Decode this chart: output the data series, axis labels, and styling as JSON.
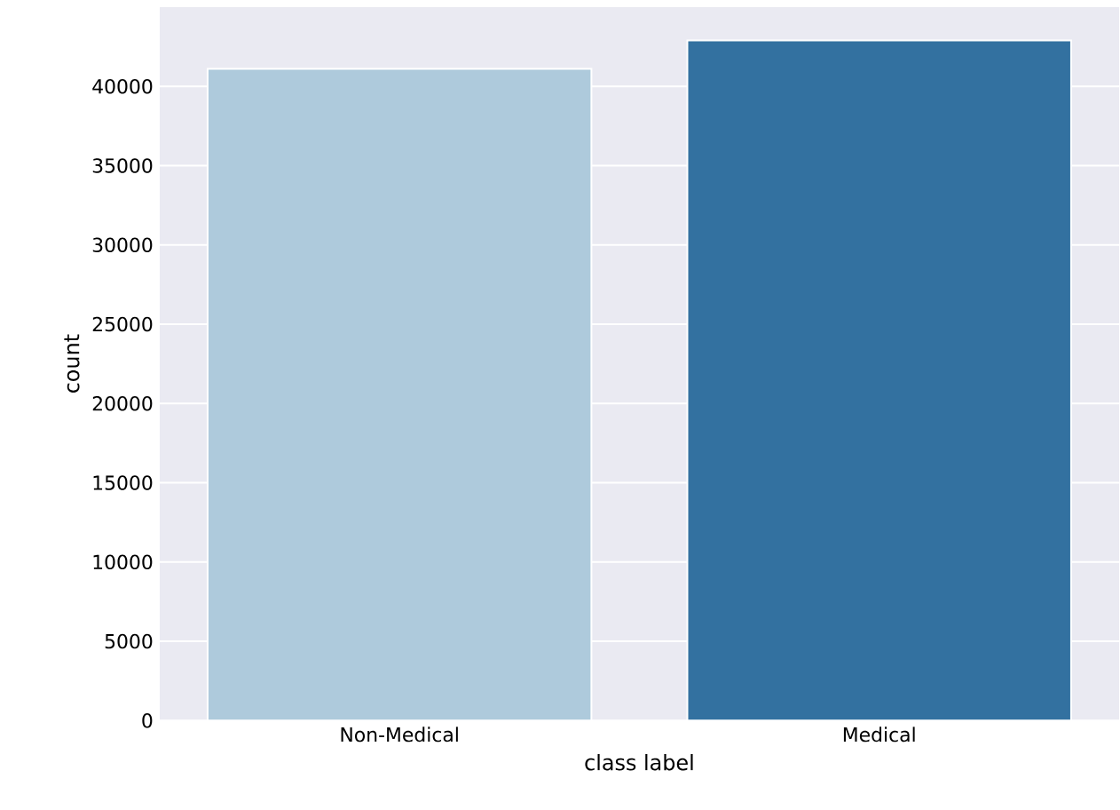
{
  "chart_data": {
    "type": "bar",
    "xlabel": "class label",
    "ylabel": "count",
    "categories": [
      "Non-Medical",
      "Medical"
    ],
    "values": [
      41100,
      42900
    ],
    "colors": [
      "#aecadc",
      "#3371a0"
    ],
    "ylim": [
      0,
      45000
    ],
    "yticks": [
      0,
      5000,
      10000,
      15000,
      20000,
      25000,
      30000,
      35000,
      40000
    ],
    "grid": "y"
  }
}
